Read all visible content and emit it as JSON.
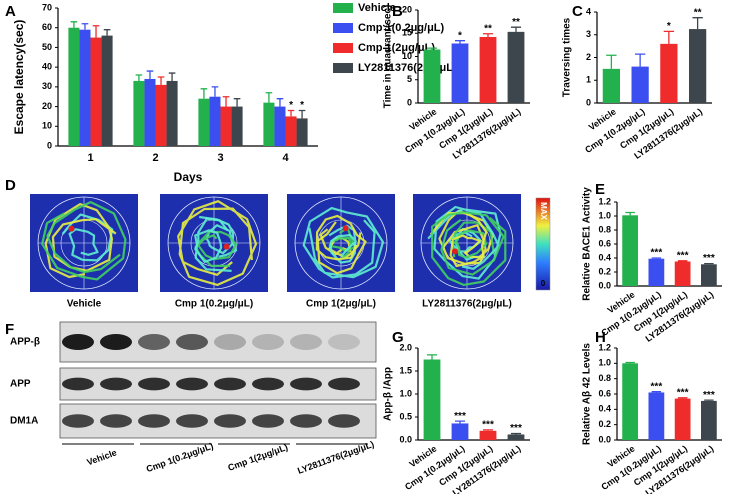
{
  "chart_data": [
    {
      "panel": "A",
      "type": "bar",
      "ylabel": "Escape latency(sec)",
      "xlabel": "Days",
      "categories": [
        "1",
        "2",
        "3",
        "4"
      ],
      "ylim": [
        0,
        70
      ],
      "yticks": [
        0,
        10,
        20,
        30,
        40,
        50,
        60,
        70
      ],
      "series": [
        {
          "name": "Vehicle",
          "color": "#22b14c",
          "values": [
            60,
            33,
            24,
            22
          ],
          "errors": [
            3,
            3,
            5,
            5
          ]
        },
        {
          "name": "Cmp 1(0.2μg/μL)",
          "color": "#3b4ff0",
          "values": [
            59,
            34,
            25,
            20
          ],
          "errors": [
            3,
            4,
            5,
            4
          ]
        },
        {
          "name": "Cmp 1(2μg/μL)",
          "color": "#ef2b2b",
          "values": [
            55,
            31,
            20,
            15
          ],
          "errors": [
            6,
            4,
            5,
            3
          ],
          "significance": [
            null,
            null,
            null,
            "*"
          ]
        },
        {
          "name": "LY2811376(2μg/μL)",
          "color": "#3c464c",
          "values": [
            56,
            33,
            20,
            14
          ],
          "errors": [
            3,
            4,
            4,
            4
          ],
          "significance": [
            null,
            null,
            null,
            "*"
          ]
        }
      ]
    },
    {
      "panel": "B",
      "type": "bar",
      "ylabel": "Time in quadrant(sec)",
      "categories": [
        "Vehicle",
        "Cmp 1(0.2μg/μL)",
        "Cmp 1(2μg/μL)",
        "LY2811376(2μg/μL)"
      ],
      "values": [
        11.5,
        12.8,
        14.2,
        15.3
      ],
      "errors": [
        0.3,
        0.6,
        0.7,
        1.0
      ],
      "significance": [
        null,
        "*",
        "**",
        "**"
      ],
      "colors": [
        "#22b14c",
        "#3b4ff0",
        "#ef2b2b",
        "#3c464c"
      ],
      "ylim": [
        0,
        20
      ],
      "yticks": [
        0,
        5,
        10,
        15,
        20
      ]
    },
    {
      "panel": "C",
      "type": "bar",
      "ylabel": "Traversing times",
      "categories": [
        "Vehicle",
        "Cmp 1(0.2μg/μL)",
        "Cmp 1(2μg/μL)",
        "LY2811376(2μg/μL)"
      ],
      "values": [
        1.5,
        1.6,
        2.6,
        3.25
      ],
      "errors": [
        0.6,
        0.55,
        0.55,
        0.5
      ],
      "significance": [
        null,
        null,
        "*",
        "**"
      ],
      "colors": [
        "#22b14c",
        "#3b4ff0",
        "#ef2b2b",
        "#3c464c"
      ],
      "ylim": [
        0,
        4
      ],
      "yticks": [
        0,
        1,
        2,
        3,
        4
      ]
    },
    {
      "panel": "E",
      "type": "bar",
      "ylabel": "Relative BACE1 Activity",
      "categories": [
        "Vehicle",
        "Cmp 1(0.2μg/μL)",
        "Cmp 1(2μg/μL)",
        "LY2811376(2μg/μL)"
      ],
      "values": [
        1.01,
        0.39,
        0.35,
        0.31
      ],
      "errors": [
        0.04,
        0.01,
        0.01,
        0.01
      ],
      "significance": [
        null,
        "***",
        "***",
        "***"
      ],
      "colors": [
        "#22b14c",
        "#3b4ff0",
        "#ef2b2b",
        "#3c464c"
      ],
      "ylim": [
        0,
        1.2
      ],
      "yticks": [
        {
          "value": 0,
          "label": "0.0"
        },
        0.2,
        0.4,
        0.6,
        0.8,
        {
          "value": 1,
          "label": "1.0"
        },
        1.2
      ]
    },
    {
      "panel": "G",
      "type": "bar",
      "ylabel": "App-β /App",
      "categories": [
        "Vehicle",
        "Cmp 1(0.2μg/μL)",
        "Cmp 1(2μg/μL)",
        "LY2811376(2μg/μL)"
      ],
      "values": [
        1.75,
        0.36,
        0.2,
        0.12
      ],
      "errors": [
        0.1,
        0.05,
        0.02,
        0.02
      ],
      "significance": [
        null,
        "***",
        "***",
        "***"
      ],
      "colors": [
        "#22b14c",
        "#3b4ff0",
        "#ef2b2b",
        "#3c464c"
      ],
      "ylim": [
        0,
        2
      ],
      "yticks": [
        {
          "value": 0,
          "label": "0.0"
        },
        0.5,
        {
          "value": 1,
          "label": "1.0"
        },
        1.5,
        {
          "value": 2,
          "label": "2.0"
        }
      ]
    },
    {
      "panel": "H",
      "type": "bar",
      "ylabel": "Relative Aβ 42 Levels",
      "categories": [
        "Vehicle",
        "Cmp 1(0.2μg/μL)",
        "Cmp 1(2μg/μL)",
        "LY2811376(2μg/μL)"
      ],
      "values": [
        1.0,
        0.62,
        0.54,
        0.51
      ],
      "errors": [
        0.01,
        0.01,
        0.01,
        0.01
      ],
      "significance": [
        null,
        "***",
        "***",
        "***"
      ],
      "colors": [
        "#22b14c",
        "#3b4ff0",
        "#ef2b2b",
        "#3c464c"
      ],
      "ylim": [
        0,
        1.2
      ],
      "yticks": [
        {
          "value": 0,
          "label": "0.0"
        },
        0.2,
        0.4,
        0.6,
        0.8,
        {
          "value": 1,
          "label": "1.0"
        },
        1.2
      ]
    }
  ],
  "heatmaps": {
    "panel": "D",
    "labels": [
      "Vehicle",
      "Cmp 1(0.2μg/μL)",
      "Cmp 1(2μg/μL)",
      "LY2811376(2μg/μL)"
    ],
    "scale_max": "MAX",
    "scale_min": "0"
  },
  "blot": {
    "panel": "F",
    "rows": [
      "APP-β",
      "APP",
      "DM1A"
    ],
    "groups": [
      "Vehicle",
      "Cmp 1(0.2μg/μL)",
      "Cmp 1(2μg/μL)",
      "LY2811376(2μg/μL)"
    ]
  }
}
